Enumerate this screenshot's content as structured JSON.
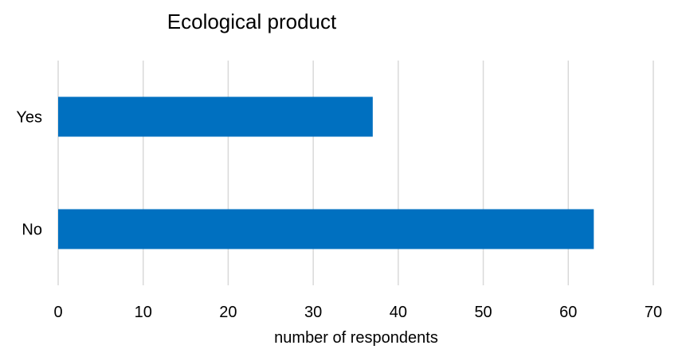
{
  "chart_data": {
    "type": "bar",
    "orientation": "horizontal",
    "title": "Ecological product",
    "xlabel": "number of respondents",
    "ylabel": "",
    "categories": [
      "Yes",
      "No"
    ],
    "values": [
      37,
      63
    ],
    "xlim": [
      0,
      70
    ],
    "x_ticks": [
      "0",
      "10",
      "20",
      "30",
      "40",
      "50",
      "60",
      "70"
    ],
    "grid": "vertical",
    "legend": "none",
    "bar_color": "#0070c0"
  }
}
